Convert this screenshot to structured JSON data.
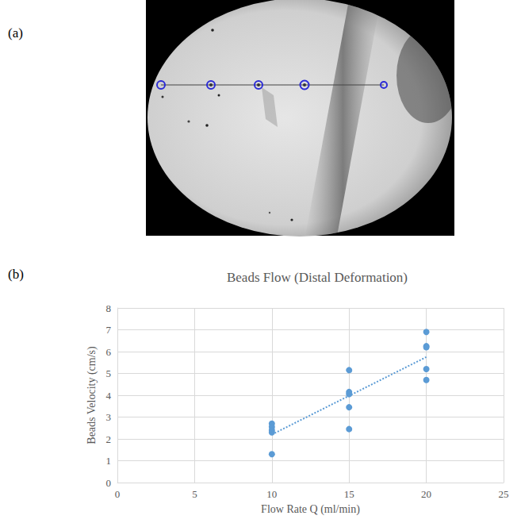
{
  "panels": {
    "a": {
      "label": "(a)"
    }
  },
  "chart_data": {
    "type": "scatter",
    "panel_label": "(b)",
    "title": "Beads Flow (Distal Deformation)",
    "x_label": "Flow Rate Q (ml/min)",
    "y_label": "Beads Velocity (cm/s)",
    "series": [
      {
        "type": "scatter",
        "marker": "circle",
        "color": "#5b9bd5",
        "x": [
          10,
          10,
          10,
          10,
          10,
          15,
          15,
          15,
          15,
          15,
          20,
          20,
          20,
          20,
          20
        ],
        "values": [
          2.7,
          2.55,
          2.4,
          2.3,
          1.3,
          5.15,
          4.15,
          4.05,
          3.45,
          2.45,
          6.9,
          6.25,
          6.2,
          5.2,
          4.7
        ]
      },
      {
        "type": "line",
        "line_style": "dotted",
        "color": "#5b9bd5",
        "x": [
          10,
          20
        ],
        "values": [
          2.2,
          5.75
        ]
      }
    ],
    "xlim": [
      0,
      25
    ],
    "xticks": [
      0,
      5,
      10,
      15,
      20,
      25
    ],
    "ylim": [
      0,
      8
    ],
    "yticks": [
      0,
      1,
      2,
      3,
      4,
      5,
      6,
      7,
      8
    ],
    "grid": true
  }
}
